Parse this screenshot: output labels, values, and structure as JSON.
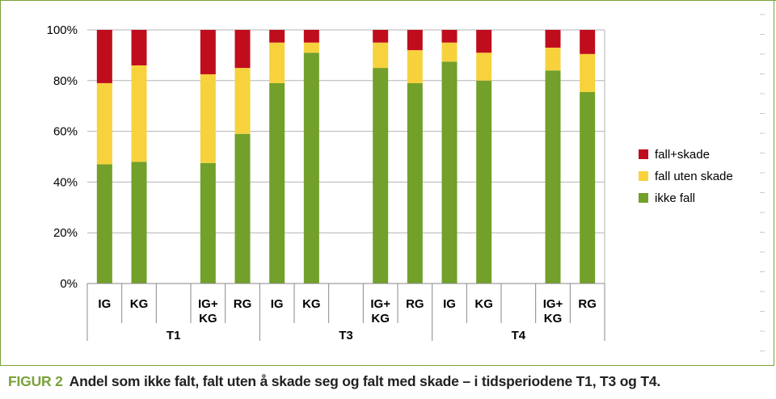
{
  "caption": {
    "figure_label": "FIGUR 2",
    "text": "Andel som ikke falt, falt uten å skade seg og falt med skade – i tidsperiodene T1, T3 og T4."
  },
  "chart_data": {
    "type": "bar",
    "stacked": true,
    "percent": true,
    "ylim": [
      0,
      100
    ],
    "yticks": [
      "0%",
      "20%",
      "40%",
      "60%",
      "80%",
      "100%"
    ],
    "groups": [
      {
        "name": "T1",
        "categories": [
          "IG",
          "KG",
          "",
          "IG+ KG",
          "RG"
        ]
      },
      {
        "name": "T3",
        "categories": [
          "IG",
          "KG",
          "",
          "IG+ KG",
          "RG"
        ]
      },
      {
        "name": "T4",
        "categories": [
          "IG",
          "KG",
          "",
          "IG+ KG",
          "RG"
        ]
      }
    ],
    "series": [
      {
        "name": "ikke fall",
        "color": "#72a02a",
        "values": [
          47,
          48,
          null,
          47.5,
          59,
          79,
          91,
          null,
          85,
          79,
          87.5,
          80,
          null,
          84,
          75.5
        ]
      },
      {
        "name": "fall uten skade",
        "color": "#f7d23c",
        "values": [
          32,
          38,
          null,
          35,
          26,
          16,
          4,
          null,
          10,
          13,
          7.5,
          11,
          null,
          9,
          15
        ]
      },
      {
        "name": "fall+skade",
        "color": "#c00d1e",
        "values": [
          21,
          14,
          null,
          17.5,
          15,
          5,
          5,
          null,
          5,
          8,
          5,
          9,
          null,
          7,
          9.5
        ]
      }
    ],
    "legend": {
      "position": "right",
      "order": [
        "fall+skade",
        "fall uten skade",
        "ikke fall"
      ]
    },
    "grid": true
  }
}
